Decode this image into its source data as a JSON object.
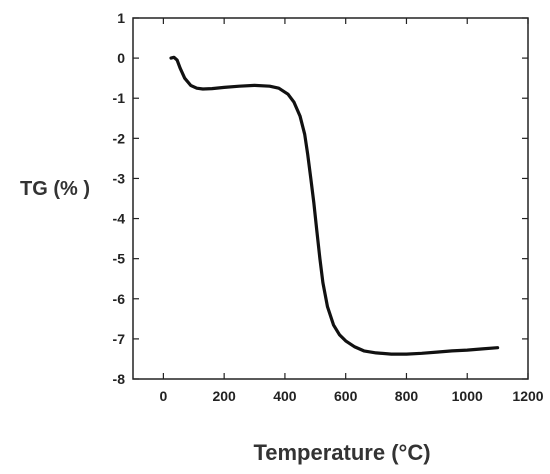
{
  "chart_data": {
    "type": "line",
    "xlabel": "Temperature (°C)",
    "ylabel": "TG (% )",
    "xlim": [
      -100,
      1200
    ],
    "ylim": [
      -8,
      1
    ],
    "xticks": [
      0,
      200,
      400,
      600,
      800,
      1000,
      1200
    ],
    "yticks": [
      1,
      0,
      -1,
      -2,
      -3,
      -4,
      -5,
      -6,
      -7,
      -8
    ],
    "grid": false,
    "legend": "none",
    "series": [
      {
        "color": "#111111",
        "x": [
          25,
          35,
          45,
          55,
          70,
          90,
          110,
          130,
          160,
          200,
          250,
          300,
          350,
          380,
          410,
          430,
          450,
          465,
          475,
          485,
          495,
          505,
          515,
          525,
          540,
          560,
          580,
          600,
          630,
          660,
          700,
          750,
          800,
          850,
          900,
          950,
          1000,
          1050,
          1100
        ],
        "y": [
          0.0,
          0.02,
          -0.05,
          -0.25,
          -0.5,
          -0.68,
          -0.75,
          -0.77,
          -0.76,
          -0.73,
          -0.7,
          -0.68,
          -0.7,
          -0.75,
          -0.9,
          -1.1,
          -1.45,
          -1.9,
          -2.4,
          -3.0,
          -3.6,
          -4.3,
          -5.0,
          -5.6,
          -6.2,
          -6.65,
          -6.9,
          -7.05,
          -7.2,
          -7.3,
          -7.35,
          -7.38,
          -7.38,
          -7.36,
          -7.33,
          -7.3,
          -7.28,
          -7.25,
          -7.22
        ]
      }
    ]
  }
}
